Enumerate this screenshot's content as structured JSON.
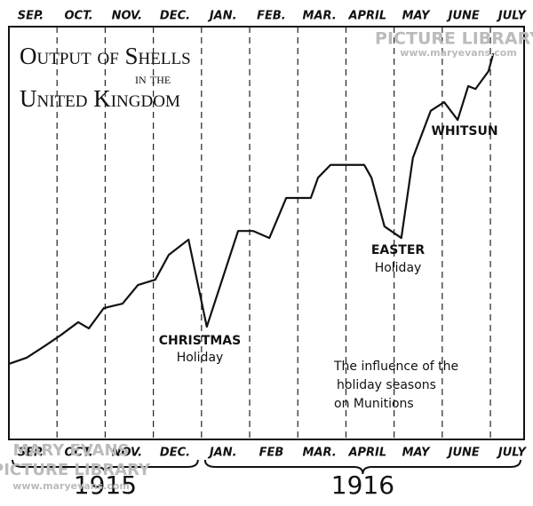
{
  "chart_data": {
    "type": "line",
    "title": [
      "Output of Shells",
      "in the",
      "United Kingdom"
    ],
    "categories": [
      "SEP.",
      "OCT.",
      "NOV.",
      "DEC.",
      "JAN.",
      "FEB.",
      "MAR.",
      "APRIL",
      "MAY",
      "JUNE",
      "JULY"
    ],
    "categories_bottom": [
      "SEP.",
      "OCT.",
      "NOV.",
      "DEC.",
      "JAN.",
      "FEB",
      "MAR.",
      "APRIL",
      "MAY",
      "JUNE",
      "JULY"
    ],
    "years": [
      {
        "label": "1915",
        "from": 0,
        "to": 4
      },
      {
        "label": "1916",
        "from": 4,
        "to": 11
      }
    ],
    "x": [
      0,
      0.37,
      0.74,
      1.07,
      1.44,
      1.66,
      1.97,
      2.36,
      2.68,
      3.04,
      3.32,
      3.73,
      4.11,
      4.76,
      5.07,
      5.41,
      5.76,
      6.27,
      6.42,
      6.68,
      7.38,
      7.53,
      7.8,
      8.15,
      8.39,
      8.76,
      9.04,
      9.32,
      9.54,
      9.69,
      9.96,
      10.06
    ],
    "values": [
      18.3,
      19.8,
      22.6,
      25.2,
      28.4,
      26.9,
      31.8,
      32.9,
      37.4,
      38.7,
      44.7,
      48.4,
      27.3,
      50.5,
      50.5,
      48.8,
      58.5,
      58.5,
      63.4,
      66.5,
      66.5,
      63.4,
      51.6,
      48.8,
      68.2,
      79.6,
      81.7,
      77.4,
      85.6,
      84.9,
      89.2,
      93.5
    ],
    "color": "#111111",
    "xlim": [
      0,
      10.7
    ],
    "ylim": [
      0,
      100
    ],
    "annotations": [
      {
        "lines": [
          "CHRISTMAS",
          "Holiday"
        ]
      },
      {
        "lines": [
          "EASTER",
          "Holiday"
        ]
      },
      {
        "lines": [
          "WHITSUN"
        ]
      },
      {
        "lines": [
          "The influence of the",
          "holiday seasons",
          "on Munitions"
        ]
      }
    ],
    "watermark": [
      "MARY EVANS",
      "PICTURE LIBRARY",
      "www.maryevans.com"
    ]
  }
}
